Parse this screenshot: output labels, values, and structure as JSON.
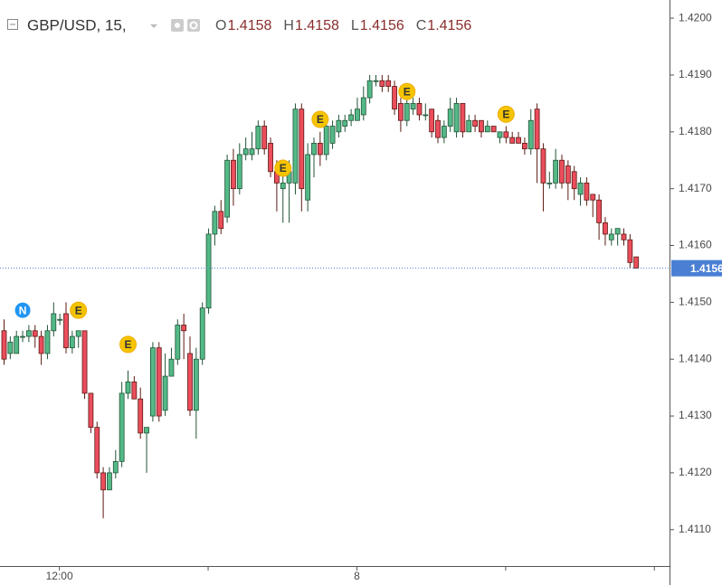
{
  "chart_data": {
    "type": "candlestick",
    "title": "GBP/USD, 15,",
    "ohlc_legend": [
      {
        "label": "O",
        "value": 1.4158
      },
      {
        "label": "H",
        "value": 1.4158
      },
      {
        "label": "L",
        "value": 1.4156
      },
      {
        "label": "C",
        "value": 1.4156
      }
    ],
    "categories": [
      null,
      null,
      null,
      null,
      null,
      null,
      null,
      null,
      null,
      "12:00",
      null,
      null,
      null,
      null,
      null,
      null,
      null,
      null,
      null,
      null,
      null,
      null,
      null,
      null,
      null,
      null,
      null,
      null,
      null,
      null,
      null,
      null,
      null,
      null,
      null,
      null,
      null,
      null,
      null,
      null,
      null,
      null,
      null,
      null,
      null,
      null,
      null,
      null,
      null,
      null,
      null,
      null,
      null,
      null,
      null,
      null,
      null,
      "8",
      null,
      null,
      null,
      null,
      null,
      null,
      null,
      null,
      null,
      null,
      null,
      null,
      null,
      null,
      null,
      null,
      null,
      null,
      null,
      null,
      null,
      null,
      null,
      null,
      null,
      null,
      null,
      null,
      null,
      null,
      null,
      null,
      null,
      null,
      null,
      null,
      null,
      null,
      null,
      null,
      null,
      null,
      null,
      null,
      null
    ],
    "open": [
      1.4145,
      1.4141,
      1.4141,
      1.4144,
      1.4144,
      1.4145,
      1.4144,
      1.4141,
      1.4145,
      1.4147,
      1.4148,
      1.4142,
      1.4144,
      1.4145,
      1.4134,
      1.4128,
      1.412,
      1.4117,
      1.412,
      1.4122,
      1.4134,
      1.4136,
      1.4133,
      1.4127,
      1.413,
      1.4142,
      1.4131,
      1.4137,
      1.414,
      1.4146,
      1.4141,
      1.4131,
      1.414,
      1.4149,
      1.4162,
      1.4166,
      1.4165,
      1.4175,
      1.417,
      1.4176,
      1.4176,
      1.4177,
      1.4181,
      1.4178,
      1.4173,
      1.417,
      1.4171,
      1.4171,
      1.4184,
      1.4168,
      1.4176,
      1.4178,
      1.4176,
      1.4178,
      1.418,
      1.4181,
      1.4182,
      1.4182,
      1.4183,
      1.4186,
      1.4189,
      1.4189,
      1.4189,
      1.4188,
      1.4185,
      1.4182,
      1.4184,
      1.4185,
      1.4183,
      1.4184,
      1.4182,
      1.4179,
      1.4181,
      1.418,
      1.4185,
      1.418,
      1.4182,
      1.4182,
      1.418,
      1.4181,
      1.4179,
      1.418,
      1.4179,
      1.4179,
      1.4178,
      1.4177,
      1.4184,
      1.4177,
      1.4171,
      1.4171,
      1.4175,
      1.4174,
      1.4173,
      1.4169,
      1.4171,
      1.4169,
      1.4168,
      1.4164,
      1.4161,
      1.4162,
      1.4162,
      1.4161,
      1.4158
    ],
    "high": [
      1.4147,
      1.4144,
      1.4145,
      1.4145,
      1.4146,
      1.4146,
      1.4145,
      1.4146,
      1.415,
      1.4148,
      1.415,
      1.4145,
      1.4145,
      1.4145,
      1.4134,
      1.4129,
      1.4121,
      1.4121,
      1.4124,
      1.4136,
      1.4138,
      1.4137,
      1.4135,
      1.4128,
      1.4143,
      1.4143,
      1.4141,
      1.4142,
      1.4147,
      1.4148,
      1.4144,
      1.4142,
      1.415,
      1.4163,
      1.4167,
      1.4168,
      1.4176,
      1.4177,
      1.4178,
      1.4179,
      1.418,
      1.4182,
      1.4182,
      1.4179,
      1.4175,
      1.4174,
      1.4175,
      1.4185,
      1.4185,
      1.4178,
      1.4179,
      1.418,
      1.4182,
      1.4182,
      1.4183,
      1.4183,
      1.4184,
      1.4186,
      1.4188,
      1.419,
      1.419,
      1.419,
      1.419,
      1.4189,
      1.4186,
      1.4186,
      1.4186,
      1.4186,
      1.4185,
      1.4184,
      1.4183,
      1.4182,
      1.4186,
      1.4186,
      1.4185,
      1.4183,
      1.4183,
      1.4182,
      1.4182,
      1.4181,
      1.418,
      1.4181,
      1.418,
      1.418,
      1.4179,
      1.4184,
      1.4185,
      1.4178,
      1.4173,
      1.4177,
      1.4176,
      1.4175,
      1.4174,
      1.4172,
      1.4172,
      1.4169,
      1.4169,
      1.4165,
      1.4163,
      1.4163,
      1.4163,
      1.4162,
      1.4158
    ],
    "low": [
      1.4139,
      1.414,
      1.4141,
      1.4143,
      1.4143,
      1.4142,
      1.4139,
      1.414,
      1.4144,
      1.4146,
      1.4141,
      1.4141,
      1.4142,
      1.4133,
      1.4127,
      1.4119,
      1.4112,
      1.4117,
      1.4119,
      1.4121,
      1.4133,
      1.4133,
      1.4126,
      1.412,
      1.4129,
      1.4129,
      1.413,
      1.4137,
      1.4139,
      1.414,
      1.413,
      1.4126,
      1.4139,
      1.4148,
      1.416,
      1.4162,
      1.4164,
      1.4167,
      1.4169,
      1.4175,
      1.4175,
      1.4176,
      1.4176,
      1.4172,
      1.4166,
      1.4164,
      1.4164,
      1.4169,
      1.4166,
      1.4166,
      1.4172,
      1.4174,
      1.4175,
      1.4177,
      1.4179,
      1.418,
      1.4181,
      1.4182,
      1.4182,
      1.4185,
      1.4188,
      1.4187,
      1.4187,
      1.4183,
      1.418,
      1.4181,
      1.4183,
      1.4182,
      1.4182,
      1.4179,
      1.4178,
      1.4178,
      1.418,
      1.4179,
      1.4179,
      1.418,
      1.418,
      1.4179,
      1.418,
      1.418,
      1.4178,
      1.4178,
      1.4178,
      1.4178,
      1.4176,
      1.4176,
      1.4171,
      1.4166,
      1.417,
      1.417,
      1.417,
      1.4168,
      1.4168,
      1.4167,
      1.4167,
      1.4165,
      1.4161,
      1.416,
      1.416,
      1.416,
      1.416,
      1.4156,
      1.4156
    ],
    "close": [
      1.414,
      1.4143,
      1.4144,
      1.4144,
      1.4145,
      1.4144,
      1.4141,
      1.4145,
      1.4148,
      1.4147,
      1.4142,
      1.4144,
      1.4145,
      1.4134,
      1.4128,
      1.412,
      1.4117,
      1.412,
      1.4122,
      1.4134,
      1.4136,
      1.4133,
      1.4127,
      1.4128,
      1.4142,
      1.413,
      1.4137,
      1.414,
      1.4146,
      1.4145,
      1.4131,
      1.414,
      1.4149,
      1.4162,
      1.4166,
      1.4163,
      1.4175,
      1.417,
      1.4176,
      1.4177,
      1.4177,
      1.4181,
      1.4177,
      1.4173,
      1.4171,
      1.4171,
      1.4173,
      1.4184,
      1.417,
      1.4176,
      1.4178,
      1.4176,
      1.4181,
      1.4181,
      1.4182,
      1.4182,
      1.4183,
      1.4184,
      1.4186,
      1.4189,
      1.4189,
      1.4188,
      1.4188,
      1.4184,
      1.4182,
      1.4185,
      1.4185,
      1.4183,
      1.4183,
      1.418,
      1.4179,
      1.4181,
      1.4184,
      1.4185,
      1.418,
      1.4182,
      1.4181,
      1.418,
      1.4181,
      1.418,
      1.418,
      1.4179,
      1.4178,
      1.4178,
      1.4177,
      1.4182,
      1.4177,
      1.4171,
      1.4171,
      1.4175,
      1.4171,
      1.4171,
      1.417,
      1.4171,
      1.4168,
      1.4168,
      1.4164,
      1.4162,
      1.4162,
      1.4163,
      1.4161,
      1.4157,
      1.4156
    ],
    "up_color": "#53b987",
    "down_color": "#eb4d5c",
    "ylim": [
      1.41036,
      1.42032
    ],
    "yticks": [
      {
        "value": 1.411,
        "label": "1.4110"
      },
      {
        "value": 1.412,
        "label": "1.4120"
      },
      {
        "value": 1.413,
        "label": "1.4130"
      },
      {
        "value": 1.414,
        "label": "1.4140"
      },
      {
        "value": 1.415,
        "label": "1.4150"
      },
      {
        "value": 1.416,
        "label": "1.4160"
      },
      {
        "value": 1.417,
        "label": "1.4170"
      },
      {
        "value": 1.418,
        "label": "1.4180"
      },
      {
        "value": 1.419,
        "label": "1.4190"
      },
      {
        "value": 1.42,
        "label": "1.4200"
      }
    ],
    "last_price": 1.4156,
    "events": [
      {
        "label": "N",
        "x": 3,
        "y": 1.41486
      },
      {
        "label": "E",
        "x": 12,
        "y": 1.41486
      },
      {
        "label": "E",
        "x": 20,
        "y": 1.41426
      },
      {
        "label": "E",
        "x": 45,
        "y": 1.41736
      },
      {
        "label": "E",
        "x": 51,
        "y": 1.41822
      },
      {
        "label": "E",
        "x": 65,
        "y": 1.41871
      },
      {
        "label": "E",
        "x": 81,
        "y": 1.41831
      }
    ]
  }
}
